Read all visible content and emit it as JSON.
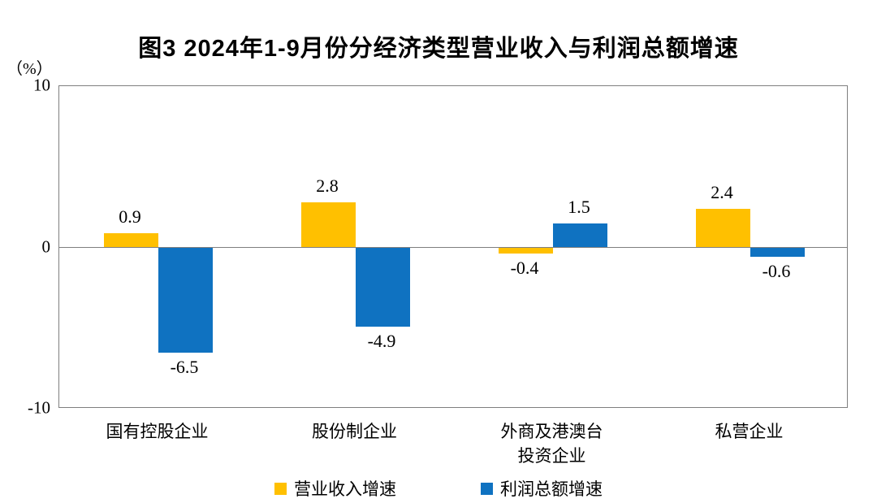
{
  "title": "图3 2024年1-9月份分经济类型营业收入与利润总额增速",
  "chart_data": {
    "type": "bar",
    "title": "图3 2024年1-9月份分经济类型营业收入与利润总额增速",
    "unit_label": "（%）",
    "categories": [
      "国有控股企业",
      "股份制企业",
      "外商及港澳台\n投资企业",
      "私营企业"
    ],
    "series": [
      {
        "name": "营业收入增速",
        "color": "#FFC000",
        "values": [
          0.9,
          2.8,
          -0.4,
          2.4
        ]
      },
      {
        "name": "利润总额增速",
        "color": "#0F72C1",
        "values": [
          -6.5,
          -4.9,
          1.5,
          -0.6
        ]
      }
    ],
    "value_labels": [
      [
        "0.9",
        "2.8",
        "-0.4",
        "2.4"
      ],
      [
        "-6.5",
        "-4.9",
        "1.5",
        "-0.6"
      ]
    ],
    "ylim": [
      -10,
      10
    ],
    "yticks": [
      "10",
      "0",
      "-10"
    ],
    "ytick_values": [
      10,
      0,
      -10
    ],
    "grid": false,
    "legend_position": "bottom",
    "colors": {
      "axis_line": "#7f7f7f",
      "text": "#000000",
      "background": "#ffffff"
    }
  }
}
